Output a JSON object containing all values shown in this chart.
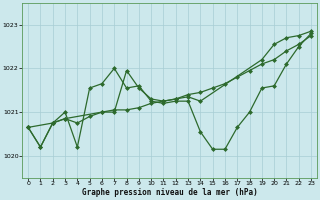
{
  "title": "Graphe pression niveau de la mer (hPa)",
  "bg_color": "#cce8ec",
  "grid_color": "#a8cdd4",
  "line_color": "#2d6a2d",
  "xlim": [
    -0.5,
    23.5
  ],
  "ylim": [
    1019.5,
    1023.5
  ],
  "yticks": [
    1020,
    1021,
    1022,
    1023
  ],
  "xticks": [
    0,
    1,
    2,
    3,
    4,
    5,
    6,
    7,
    8,
    9,
    10,
    11,
    12,
    13,
    14,
    15,
    16,
    17,
    18,
    19,
    20,
    21,
    22,
    23
  ],
  "line1_x": [
    0,
    1,
    2,
    3,
    4,
    5,
    6,
    7,
    8,
    9,
    10,
    11,
    12,
    13,
    14,
    15,
    16,
    17,
    18,
    19,
    20,
    21,
    22,
    23
  ],
  "line1_y": [
    1020.65,
    1020.2,
    1020.75,
    1020.85,
    1020.75,
    1020.9,
    1021.0,
    1021.05,
    1021.05,
    1021.1,
    1021.2,
    1021.25,
    1021.3,
    1021.4,
    1021.45,
    1021.55,
    1021.65,
    1021.8,
    1021.95,
    1022.1,
    1022.2,
    1022.4,
    1022.55,
    1022.75
  ],
  "line2_x": [
    0,
    1,
    2,
    3,
    4,
    5,
    6,
    7,
    8,
    9,
    10,
    11,
    12,
    13,
    14,
    15,
    16,
    17,
    18,
    19,
    20,
    21,
    22,
    23
  ],
  "line2_y": [
    1020.65,
    1020.2,
    1020.75,
    1021.0,
    1020.2,
    1021.55,
    1021.65,
    1022.0,
    1021.55,
    1021.6,
    1021.25,
    1021.2,
    1021.25,
    1021.25,
    1020.55,
    1020.15,
    1020.15,
    1020.65,
    1021.0,
    1021.55,
    1021.6,
    1022.1,
    1022.5,
    1022.8
  ],
  "line3_x": [
    0,
    2,
    3,
    6,
    7,
    8,
    9,
    10,
    11,
    12,
    13,
    14,
    19,
    20,
    21,
    22,
    23
  ],
  "line3_y": [
    1020.65,
    1020.75,
    1020.85,
    1021.0,
    1021.0,
    1021.95,
    1021.55,
    1021.3,
    1021.25,
    1021.3,
    1021.35,
    1021.25,
    1022.2,
    1022.55,
    1022.7,
    1022.75,
    1022.85
  ]
}
